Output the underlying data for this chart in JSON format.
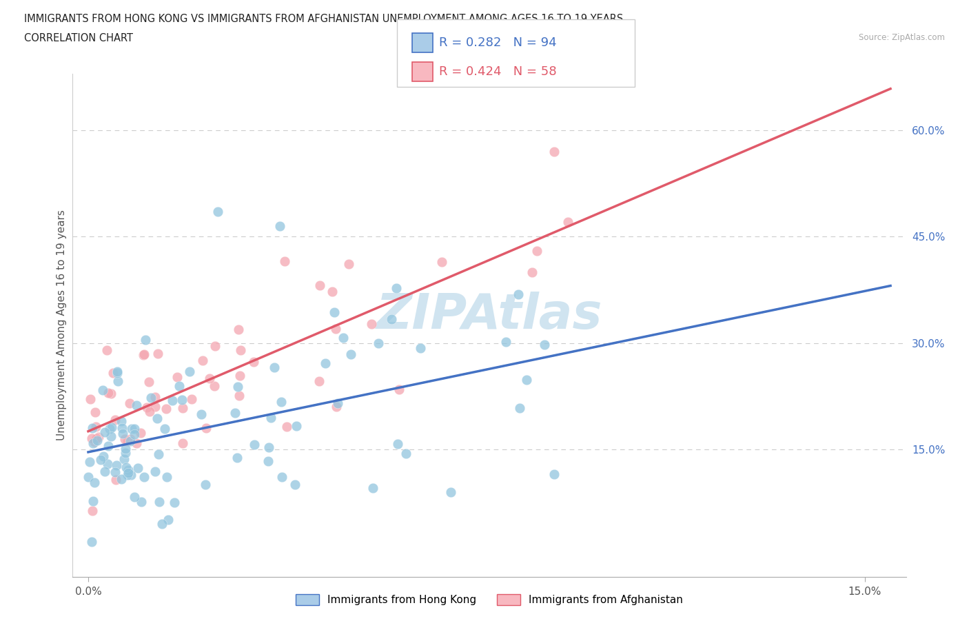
{
  "title_line1": "IMMIGRANTS FROM HONG KONG VS IMMIGRANTS FROM AFGHANISTAN UNEMPLOYMENT AMONG AGES 16 TO 19 YEARS",
  "title_line2": "CORRELATION CHART",
  "source": "Source: ZipAtlas.com",
  "ylabel": "Unemployment Among Ages 16 to 19 years",
  "xlim": [
    -0.003,
    0.158
  ],
  "ylim": [
    -0.03,
    0.68
  ],
  "hk_color": "#92c5de",
  "af_color": "#f4a6b0",
  "hk_line_color": "#4472c4",
  "af_line_color": "#e05a6a",
  "hk_dash_color": "#92c5de",
  "hk_R": 0.282,
  "hk_N": 94,
  "af_R": 0.424,
  "af_N": 58,
  "watermark": "ZIPAtlas",
  "ytick_right": [
    0.15,
    0.3,
    0.45,
    0.6
  ],
  "ytick_right_labels": [
    "15.0%",
    "30.0%",
    "45.0%",
    "60.0%"
  ],
  "xtick_vals": [
    0.0,
    0.15
  ],
  "xtick_labels": [
    "0.0%",
    "15.0%"
  ],
  "grid_color": "#cccccc",
  "hk_intercept": 0.135,
  "hk_slope": 2.05,
  "af_intercept": 0.175,
  "af_slope": 2.95,
  "legend_hk_fc": "#aacce8",
  "legend_hk_ec": "#4472c4",
  "legend_af_fc": "#f8b8c0",
  "legend_af_ec": "#e05a6a"
}
